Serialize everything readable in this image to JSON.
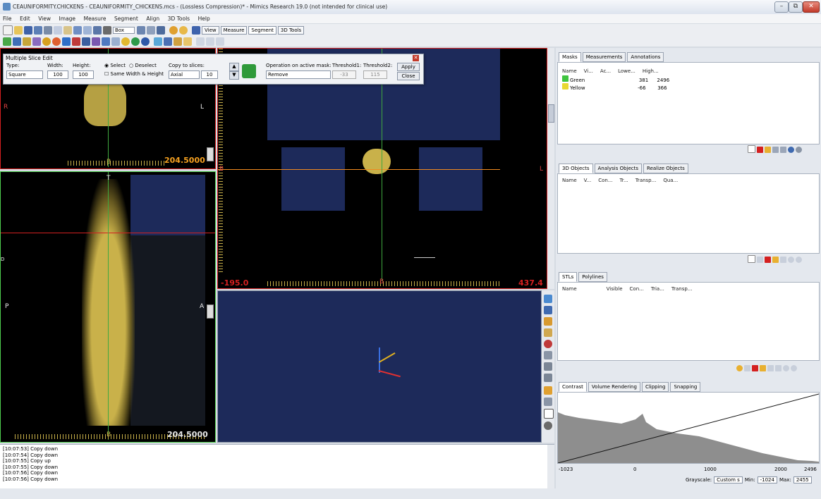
{
  "window": {
    "title": "CEAUNIFORMITY.CHICKENS - CEAUNIFORMITY_CHICKENS.mcs - (Lossless Compression)* - Mimics Research 19.0 (not intended for clinical use)",
    "minimize": "–",
    "restore": "⧉",
    "close": "✕"
  },
  "menu": [
    "File",
    "Edit",
    "View",
    "Image",
    "Measure",
    "Segment",
    "Align",
    "3D Tools",
    "Help"
  ],
  "toolbar": {
    "box_select": "Box",
    "view_tabs": [
      "View",
      "Measure",
      "Segment",
      "3D Tools"
    ]
  },
  "mse": {
    "title": "Multiple Slice Edit",
    "type_label": "Type:",
    "type_value": "Square",
    "width_label": "Width:",
    "width_value": "100",
    "height_label": "Height:",
    "height_value": "100",
    "select_label": "Select",
    "deselect_label": "Deselect",
    "same_wh_label": "Same Width & Height",
    "copy_label": "Copy to slices:",
    "axis_value": "Axial",
    "slices_value": "10",
    "op_label": "Operation on active mask:",
    "op_value": "Remove",
    "thr1_label": "Threshold1:",
    "thr1_value": "-33",
    "thr2_label": "Threshold2:",
    "thr2_value": "115",
    "apply": "Apply",
    "close": "Close"
  },
  "views": {
    "top_left": {
      "value": "204.5000",
      "left": "R",
      "right": "L",
      "bottom": "B"
    },
    "bottom_left": {
      "value": "204.5000",
      "top": "T",
      "left": "P",
      "right": "A",
      "bottom": "B",
      "far_left": "D"
    },
    "main": {
      "left_value": "-195.0",
      "right_value": "437.4",
      "bottom": "B",
      "left_marker": "B",
      "right_marker": "L"
    }
  },
  "log": [
    {
      "time": "[10:07:53]",
      "text": "Copy down"
    },
    {
      "time": "[10:07:54]",
      "text": "Copy down"
    },
    {
      "time": "[10:07:55]",
      "text": "Copy up"
    },
    {
      "time": "[10:07:55]",
      "text": "Copy down"
    },
    {
      "time": "[10:07:56]",
      "text": "Copy down"
    },
    {
      "time": "[10:07:56]",
      "text": "Copy down"
    }
  ],
  "masks_panel": {
    "tabs": [
      "Masks",
      "Measurements",
      "Annotations"
    ],
    "columns": [
      "Name",
      "Vi...",
      "Ac...",
      "Lowe...",
      "High..."
    ],
    "rows": [
      {
        "name": "Green",
        "color": "#3fc43f",
        "lower": "381",
        "higher": "2496"
      },
      {
        "name": "Yellow",
        "color": "#e8d832",
        "lower": "-66",
        "higher": "366"
      }
    ]
  },
  "objects3d_panel": {
    "tabs": [
      "3D Objects",
      "Analysis Objects",
      "Realize Objects"
    ],
    "columns": [
      "Name",
      "V...",
      "Con...",
      "Tr...",
      "Transp...",
      "Qua..."
    ]
  },
  "stl_panel": {
    "tabs": [
      "STLs",
      "Polylines"
    ],
    "columns": [
      "Name",
      "Visible",
      "Con...",
      "Tria...",
      "Transp..."
    ]
  },
  "contrast_panel": {
    "tabs": [
      "Contrast",
      "Volume Rendering",
      "Clipping",
      "Snapping"
    ],
    "axis_ticks": [
      "-1023",
      "0",
      "1000",
      "2000",
      "2496"
    ],
    "grayscale_label": "Grayscale:",
    "grayscale_value": "Custom s",
    "min_label": "Min:",
    "min_value": "-1024",
    "max_label": "Max:",
    "max_value": "2455"
  },
  "colors": {
    "accent_red": "#d42020",
    "accent_green": "#4fcf4f",
    "scan_yellow": "#c9b14a",
    "navy_view": "#1d2a5a",
    "orange_line": "#f08a20"
  }
}
